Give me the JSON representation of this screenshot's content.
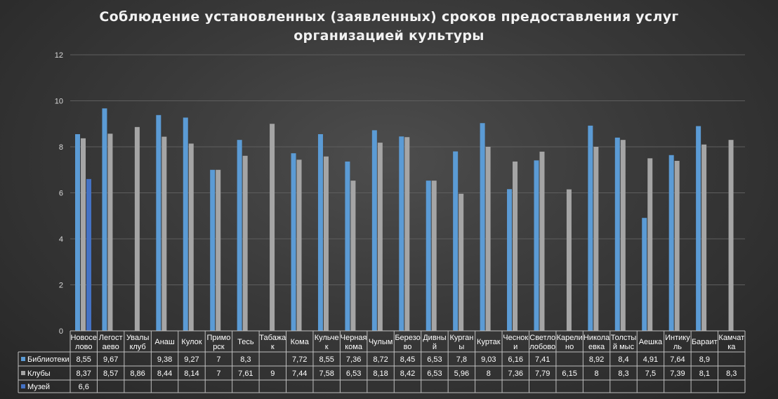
{
  "chart_data": {
    "type": "bar",
    "title_line1": "Соблюдение установленных (заявленных) сроков предоставления услуг",
    "title_line2": "организацией культуры",
    "ylim": [
      0,
      12
    ],
    "yticks": [
      "0",
      "2",
      "4",
      "6",
      "8",
      "10",
      "12"
    ],
    "grid": true,
    "legend": "data-table",
    "categories": [
      [
        "Новосе",
        "лово"
      ],
      [
        "Легост",
        "аево"
      ],
      [
        "Увалы",
        "клуб"
      ],
      [
        "Анаш"
      ],
      [
        "Кулок"
      ],
      [
        "Примо",
        "рск"
      ],
      [
        "Тесь"
      ],
      [
        "Табажа",
        "к"
      ],
      [
        "Кома"
      ],
      [
        "Кульче",
        "к"
      ],
      [
        "Черная",
        "кома"
      ],
      [
        "Чулым"
      ],
      [
        "Березо",
        "во"
      ],
      [
        "Дивны",
        "й"
      ],
      [
        "Курган",
        "ы"
      ],
      [
        "Куртак"
      ],
      [
        "Чеснок",
        "и"
      ],
      [
        "Светло",
        "лобово"
      ],
      [
        "Карели",
        "но"
      ],
      [
        "Никола",
        "евка"
      ],
      [
        "Толсты",
        "й мыс"
      ],
      [
        "Аешка"
      ],
      [
        "Интику",
        "ль"
      ],
      [
        "Бараит"
      ],
      [
        "Камчат",
        "ка"
      ]
    ],
    "series": [
      {
        "name": "Библиотеки",
        "color": "#5b9bd5",
        "values": [
          8.55,
          9.67,
          null,
          9.38,
          9.27,
          7,
          8.3,
          null,
          7.72,
          8.55,
          7.36,
          8.72,
          8.45,
          6.53,
          7.8,
          9.03,
          6.16,
          7.41,
          null,
          8.92,
          8.4,
          4.91,
          7.64,
          8.9,
          null
        ],
        "labels": [
          "8,55",
          "9,67",
          "",
          "9,38",
          "9,27",
          "7",
          "8,3",
          "",
          "7,72",
          "8,55",
          "7,36",
          "8,72",
          "8,45",
          "6,53",
          "7,8",
          "9,03",
          "6,16",
          "7,41",
          "",
          "8,92",
          "8,4",
          "4,91",
          "7,64",
          "8,9",
          ""
        ]
      },
      {
        "name": "Клубы",
        "color": "#a5a5a5",
        "values": [
          8.37,
          8.57,
          8.86,
          8.44,
          8.14,
          7,
          7.61,
          9,
          7.44,
          7.58,
          6.53,
          8.18,
          8.42,
          6.53,
          5.96,
          8,
          7.36,
          7.79,
          6.15,
          8,
          8.3,
          7.5,
          7.39,
          8.1,
          8.3
        ],
        "labels": [
          "8,37",
          "8,57",
          "8,86",
          "8,44",
          "8,14",
          "7",
          "7,61",
          "9",
          "7,44",
          "7,58",
          "6,53",
          "8,18",
          "8,42",
          "6,53",
          "5,96",
          "8",
          "7,36",
          "7,79",
          "6,15",
          "8",
          "8,3",
          "7,5",
          "7,39",
          "8,1",
          "8,3"
        ]
      },
      {
        "name": "Музей",
        "color": "#4472c4",
        "values": [
          6.6,
          null,
          null,
          null,
          null,
          null,
          null,
          null,
          null,
          null,
          null,
          null,
          null,
          null,
          null,
          null,
          null,
          null,
          null,
          null,
          null,
          null,
          null,
          null,
          null
        ],
        "labels": [
          "6,6",
          "",
          "",
          "",
          "",
          "",
          "",
          "",
          "",
          "",
          "",
          "",
          "",
          "",
          "",
          "",
          "",
          "",
          "",
          "",
          "",
          "",
          "",
          "",
          ""
        ]
      }
    ]
  }
}
